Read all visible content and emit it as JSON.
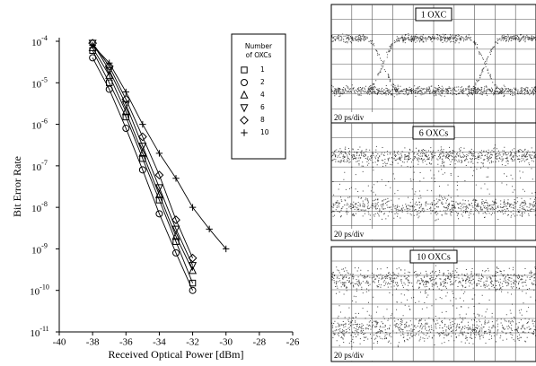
{
  "chart_data": {
    "type": "line",
    "ylabel": "Bit Error Rate",
    "xlabel": "Received Optical Power [dBm]",
    "xlim": [
      -40,
      -26
    ],
    "xticks": [
      -40,
      -38,
      -36,
      -34,
      -32,
      -30,
      -28,
      -26
    ],
    "ylim": [
      1e-11,
      0.0001
    ],
    "yscale": "log",
    "yticks": [
      {
        "value": 0.0001,
        "label": "10-4"
      },
      {
        "value": 1e-05,
        "label": "10-5"
      },
      {
        "value": 1e-06,
        "label": "10-6"
      },
      {
        "value": 1e-07,
        "label": "10-7"
      },
      {
        "value": 1e-08,
        "label": "10-8"
      },
      {
        "value": 1e-09,
        "label": "10-9"
      },
      {
        "value": 1e-10,
        "label": "10-10"
      },
      {
        "value": 1e-11,
        "label": "10-11"
      }
    ],
    "legend_title": [
      "Number",
      "of OXCs"
    ],
    "legend": "upper right",
    "series": [
      {
        "name": "1",
        "marker": "square",
        "color": "#000000",
        "x": [
          -38,
          -37,
          -36,
          -35,
          -34,
          -33,
          -32
        ],
        "values": [
          6e-05,
          1e-05,
          1.5e-06,
          1.5e-07,
          1.5e-08,
          1.5e-09,
          1.5e-10
        ]
      },
      {
        "name": "2",
        "marker": "circle",
        "color": "#000000",
        "x": [
          -38,
          -37,
          -36,
          -35,
          -34,
          -33,
          -32
        ],
        "values": [
          4e-05,
          7e-06,
          8e-07,
          8e-08,
          7e-09,
          8e-10,
          1e-10
        ]
      },
      {
        "name": "4",
        "marker": "triangle",
        "color": "#000000",
        "x": [
          -38,
          -37,
          -36,
          -35,
          -34,
          -33,
          -32
        ],
        "values": [
          7e-05,
          1.5e-05,
          2e-06,
          2e-07,
          2e-08,
          2e-09,
          3e-10
        ]
      },
      {
        "name": "6",
        "marker": "triangle-down",
        "color": "#000000",
        "x": [
          -38,
          -37,
          -36,
          -35,
          -34,
          -33,
          -32
        ],
        "values": [
          9e-05,
          2e-05,
          3e-06,
          3e-07,
          3e-08,
          3e-09,
          4e-10
        ]
      },
      {
        "name": "8",
        "marker": "diamond",
        "color": "#000000",
        "x": [
          -38,
          -37,
          -36,
          -35,
          -34,
          -33,
          -32
        ],
        "values": [
          9e-05,
          2.5e-05,
          4e-06,
          5e-07,
          6e-08,
          5e-09,
          6e-10
        ]
      },
      {
        "name": "10",
        "marker": "plus",
        "color": "#000000",
        "x": [
          -38,
          -37,
          -36,
          -35,
          -34,
          -33,
          -32,
          -31,
          -30
        ],
        "values": [
          8e-05,
          3e-05,
          6e-06,
          1e-06,
          2e-07,
          5e-08,
          1e-08,
          3e-09,
          1e-09
        ]
      }
    ]
  },
  "eye_diagrams": [
    {
      "title": "1 OXC",
      "scale": "20 ps/div"
    },
    {
      "title": "6 OXCs",
      "scale": "20 ps/div"
    },
    {
      "title": "10 OXCs",
      "scale": "20 ps/div"
    }
  ]
}
